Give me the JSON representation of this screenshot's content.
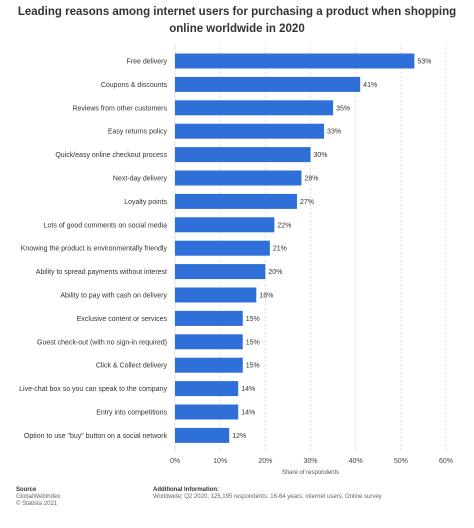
{
  "chart_data": {
    "type": "bar",
    "orientation": "horizontal",
    "title": "Leading reasons among internet users for purchasing a product when shopping online worldwide in 2020",
    "categories": [
      "Free delivery",
      "Coupons & discounts",
      "Reviews from other customers",
      "Easy returns policy",
      "Quick/easy online checkout process",
      "Next-day delivery",
      "Loyalty points",
      "Lots of good comments on social media",
      "Knowing the product is environmentally friendly",
      "Ability to spread payments without interest",
      "Ability to pay with cash on delivery",
      "Exclusive content or services",
      "Guest check-out (with no sign-in required)",
      "Click & Collect delivery",
      "Live-chat box so you can speak to the company",
      "Entry into competitions",
      "Option to use \"buy\" button on a social network"
    ],
    "values": [
      53,
      41,
      35,
      33,
      30,
      28,
      27,
      22,
      21,
      20,
      18,
      15,
      15,
      15,
      14,
      14,
      12
    ],
    "value_labels": [
      "53%",
      "41%",
      "35%",
      "33%",
      "30%",
      "28%",
      "27%",
      "22%",
      "21%",
      "20%",
      "18%",
      "15%",
      "15%",
      "15%",
      "14%",
      "14%",
      "12%"
    ],
    "xlabel": "Share of respondents",
    "ylabel": "",
    "xlim": [
      0,
      60
    ],
    "ticks": [
      "0%",
      "10%",
      "20%",
      "30%",
      "40%",
      "50%",
      "60%"
    ],
    "grid": true,
    "bar_color": "#2f6fd8"
  },
  "footer": {
    "source_heading": "Source",
    "source_lines": [
      "GlobalWebIndex",
      "© Statista 2021"
    ],
    "info_heading": "Additional Information:",
    "info_text": "Worldwide; Q2 2020; 125,195 respondents; 16-64 years; internet users; Online survey"
  }
}
